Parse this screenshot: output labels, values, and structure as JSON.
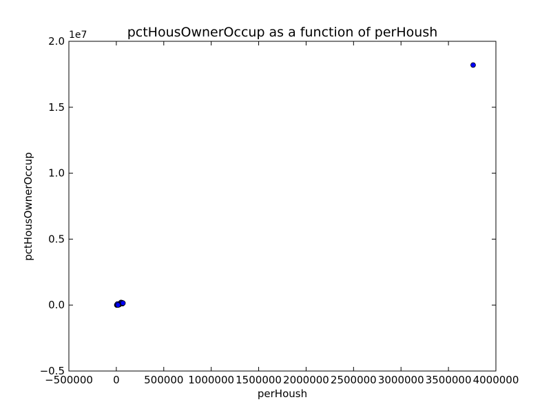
{
  "chart_data": {
    "type": "scatter",
    "title": "pctHousOwnerOccup as a function of perHoush",
    "xlabel": "perHoush",
    "ylabel": "pctHousOwnerOccup",
    "y_offset_label": "1e7",
    "xlim": [
      -500000,
      4000000
    ],
    "ylim": [
      -5000000,
      20000000
    ],
    "x_ticks": [
      -500000,
      0,
      500000,
      1000000,
      1500000,
      2000000,
      2500000,
      3000000,
      3500000,
      4000000
    ],
    "x_tick_labels": [
      "−500000",
      "0",
      "500000",
      "1000000",
      "1500000",
      "2000000",
      "2500000",
      "3000000",
      "3500000",
      "4000000"
    ],
    "y_ticks": [
      -5000000,
      0,
      5000000,
      10000000,
      15000000,
      20000000
    ],
    "y_tick_labels": [
      "−0.5",
      "0.0",
      "0.5",
      "1.0",
      "1.5",
      "2.0"
    ],
    "grid": false,
    "marker_color": "#0000ff",
    "marker_edge": "#000000",
    "points": [
      {
        "x": 3760000,
        "y": 18200000
      },
      {
        "x": 5000,
        "y": 0
      },
      {
        "x": 10000,
        "y": 20000
      },
      {
        "x": 15000,
        "y": 40000
      },
      {
        "x": 20000,
        "y": 10000
      },
      {
        "x": 25000,
        "y": 60000
      },
      {
        "x": 30000,
        "y": 30000
      },
      {
        "x": 35000,
        "y": 90000
      },
      {
        "x": 40000,
        "y": 120000
      },
      {
        "x": 45000,
        "y": 160000
      },
      {
        "x": 50000,
        "y": 200000
      },
      {
        "x": 55000,
        "y": 140000
      },
      {
        "x": 60000,
        "y": 180000
      },
      {
        "x": 65000,
        "y": 110000
      },
      {
        "x": 70000,
        "y": 150000
      },
      {
        "x": 8000,
        "y": 50000
      },
      {
        "x": 12000,
        "y": 80000
      },
      {
        "x": 18000,
        "y": 5000
      }
    ]
  }
}
